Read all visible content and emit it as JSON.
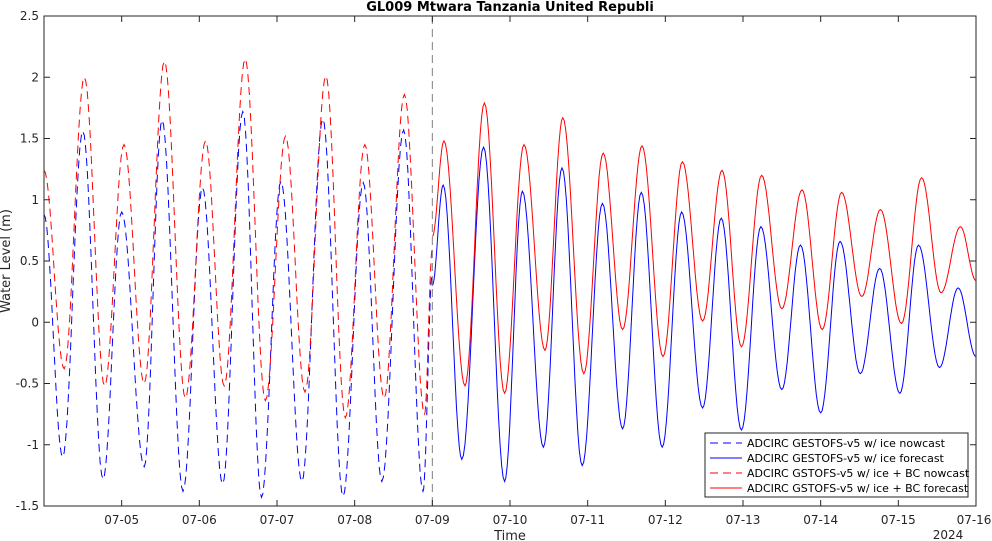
{
  "chart_data": {
    "type": "line",
    "title": "GL009 Mtwara Tanzania United Republi",
    "xlabel": "Time",
    "ylabel": "Water Level (m)",
    "x_tick_labels": [
      "07-05",
      "07-06",
      "07-07",
      "07-08",
      "07-09",
      "07-10",
      "07-11",
      "07-12",
      "07-13",
      "07-14",
      "07-15",
      "07-16"
    ],
    "x_year_label": "2024",
    "x_range_days": [
      4.0,
      16.0
    ],
    "nowcast_end_day": 9.0,
    "ylim": [
      -1.5,
      2.5
    ],
    "yticks": [
      -1.5,
      -1,
      -0.5,
      0,
      0.5,
      1,
      1.5,
      2,
      2.5
    ],
    "ytick_labels": [
      "-1.5",
      "-1",
      "-0.5",
      "0",
      "0.5",
      "1",
      "1.5",
      "2",
      "2.5"
    ],
    "grid": false,
    "legend_position": "bottom-right",
    "series": [
      {
        "name": "ADCIRC GESTOFS-v5 w/ ice nowcast",
        "color": "#0000ff",
        "dash": true,
        "x": [
          4.0,
          4.24,
          4.5,
          4.76,
          5.0,
          5.29,
          5.52,
          5.79,
          6.04,
          6.3,
          6.56,
          6.8,
          7.05,
          7.32,
          7.59,
          7.85,
          8.11,
          8.35,
          8.63,
          8.88,
          9.0
        ],
        "y": [
          0.88,
          -1.1,
          1.56,
          -1.28,
          0.9,
          -1.18,
          1.65,
          -1.38,
          1.1,
          -1.32,
          1.72,
          -1.43,
          1.15,
          -1.3,
          1.66,
          -1.42,
          1.14,
          -1.3,
          1.57,
          -1.38,
          0.4
        ]
      },
      {
        "name": "ADCIRC GESTOFS-v5 w/ ice forecast",
        "color": "#0000ff",
        "dash": false,
        "x": [
          9.0,
          9.14,
          9.38,
          9.66,
          9.93,
          10.16,
          10.43,
          10.67,
          10.93,
          11.19,
          11.45,
          11.69,
          11.96,
          12.21,
          12.48,
          12.72,
          12.98,
          13.23,
          13.5,
          13.74,
          14.0,
          14.25,
          14.51,
          14.76,
          15.02,
          15.26,
          15.53,
          15.77,
          16.0
        ],
        "y": [
          0.3,
          1.12,
          -1.12,
          1.43,
          -1.3,
          1.07,
          -1.02,
          1.26,
          -1.17,
          0.97,
          -0.87,
          1.06,
          -1.02,
          0.9,
          -0.7,
          0.85,
          -0.88,
          0.78,
          -0.55,
          0.63,
          -0.74,
          0.66,
          -0.42,
          0.44,
          -0.58,
          0.63,
          -0.37,
          0.28,
          -0.28
        ]
      },
      {
        "name": "ADCIRC GSTOFS-v5 w/ ice + BC nowcast",
        "color": "#ff0000",
        "dash": true,
        "x": [
          4.0,
          4.26,
          4.52,
          4.78,
          5.03,
          5.29,
          5.55,
          5.82,
          6.08,
          6.32,
          6.59,
          6.85,
          7.11,
          7.36,
          7.63,
          7.88,
          8.13,
          8.38,
          8.64,
          8.9,
          9.0
        ],
        "y": [
          1.24,
          -0.38,
          2.0,
          -0.52,
          1.45,
          -0.5,
          2.13,
          -0.62,
          1.48,
          -0.52,
          2.15,
          -0.64,
          1.52,
          -0.57,
          2.01,
          -0.78,
          1.45,
          -0.62,
          1.86,
          -0.75,
          0.6
        ]
      },
      {
        "name": "ADCIRC GSTOFS-v5 w/ ice + BC forecast",
        "color": "#ff0000",
        "dash": false,
        "x": [
          9.0,
          9.15,
          9.42,
          9.67,
          9.93,
          10.18,
          10.45,
          10.68,
          10.95,
          11.2,
          11.45,
          11.7,
          11.97,
          12.22,
          12.48,
          12.73,
          12.98,
          13.24,
          13.5,
          13.76,
          14.02,
          14.27,
          14.53,
          14.77,
          15.04,
          15.3,
          15.55,
          15.8,
          16.0
        ],
        "y": [
          0.7,
          1.48,
          -0.52,
          1.79,
          -0.58,
          1.45,
          -0.23,
          1.67,
          -0.42,
          1.38,
          -0.06,
          1.44,
          -0.28,
          1.31,
          0.01,
          1.24,
          -0.2,
          1.2,
          0.11,
          1.08,
          -0.06,
          1.06,
          0.21,
          0.92,
          -0.01,
          1.18,
          0.24,
          0.78,
          0.34
        ]
      }
    ]
  }
}
